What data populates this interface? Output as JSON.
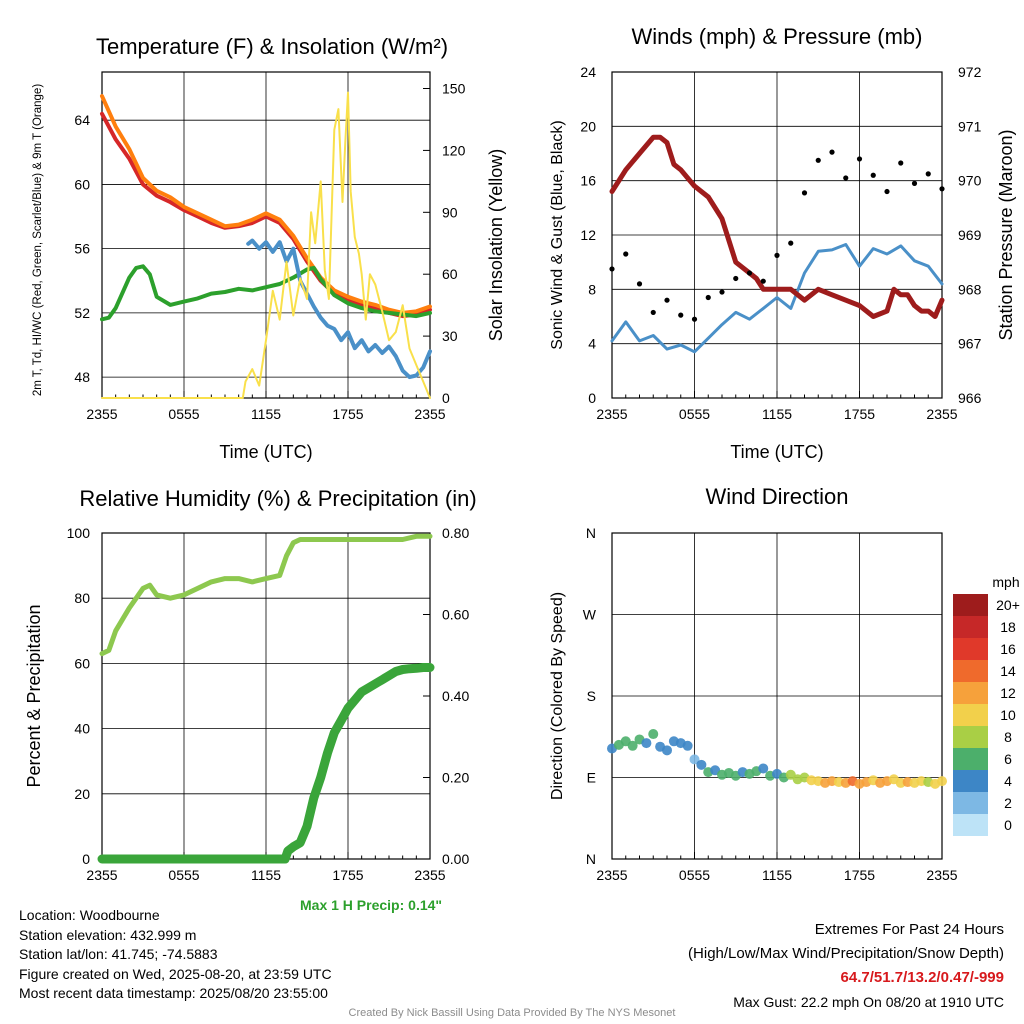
{
  "chart_data": [
    {
      "type": "line",
      "title": "Temperature (F) & Insolation (W/m²)",
      "xlabel": "Time (UTC)",
      "ylabel": "2m T, Td, HI/WC (Red, Green, Scarlet/Blue) & 9m T (Orange)",
      "y2label": "Solar Insolation (Yellow)",
      "x_ticks": [
        "2355",
        "0555",
        "1155",
        "1755",
        "2355"
      ],
      "y_ticks": [
        48,
        52,
        56,
        60,
        64
      ],
      "y2_ticks": [
        0,
        30,
        60,
        90,
        120,
        150
      ],
      "ylim": [
        46.7,
        67.0
      ],
      "y2lim": [
        0,
        158
      ],
      "x_hours": [
        0,
        24
      ],
      "series": [
        {
          "name": "2m T",
          "color": "#d62728",
          "axis": "left",
          "x": [
            0,
            1,
            2,
            3,
            4,
            5,
            6,
            7,
            8,
            9,
            10,
            11,
            12,
            13,
            14,
            15,
            16,
            17,
            18,
            19,
            20,
            21,
            22,
            23,
            24
          ],
          "values": [
            64.4,
            62.8,
            61.6,
            60.0,
            59.3,
            58.9,
            58.4,
            58.0,
            57.6,
            57.3,
            57.4,
            57.6,
            58.0,
            57.6,
            56.6,
            55.2,
            54.0,
            53.2,
            52.8,
            52.5,
            52.3,
            52.0,
            51.8,
            51.9,
            52.2
          ]
        },
        {
          "name": "9m T",
          "color": "#ff7f0e",
          "axis": "left",
          "x": [
            0,
            1,
            2,
            3,
            4,
            5,
            6,
            7,
            8,
            9,
            10,
            11,
            12,
            13,
            14,
            15,
            16,
            17,
            18,
            19,
            20,
            21,
            22,
            23,
            24
          ],
          "values": [
            65.5,
            63.6,
            62.2,
            60.4,
            59.6,
            59.2,
            58.6,
            58.2,
            57.8,
            57.4,
            57.5,
            57.8,
            58.2,
            57.8,
            56.8,
            55.4,
            54.2,
            53.4,
            53.0,
            52.7,
            52.5,
            52.2,
            52.0,
            52.1,
            52.4
          ]
        },
        {
          "name": "Td",
          "color": "#2ca02c",
          "axis": "left",
          "x": [
            0,
            0.5,
            1,
            2,
            2.5,
            3,
            3.5,
            4,
            5,
            6,
            7,
            8,
            9,
            10,
            11,
            12,
            13,
            14,
            15,
            15.5,
            16,
            17,
            18,
            19,
            20,
            21,
            22,
            23,
            24
          ],
          "values": [
            51.6,
            51.7,
            52.3,
            54.2,
            54.8,
            54.9,
            54.4,
            53.0,
            52.5,
            52.7,
            52.9,
            53.2,
            53.3,
            53.5,
            53.4,
            53.6,
            53.8,
            54.2,
            54.7,
            54.8,
            54.1,
            53.1,
            52.6,
            52.3,
            52.1,
            52.0,
            51.9,
            51.8,
            52.0
          ]
        },
        {
          "name": "HI/WC",
          "color": "#4a90c8",
          "axis": "left",
          "x": [
            10.7,
            11,
            11.5,
            12,
            12.5,
            13,
            13.5,
            14,
            14.5,
            15,
            15.5,
            16,
            16.5,
            17,
            17.5,
            18,
            18.5,
            19,
            19.5,
            20,
            20.5,
            21,
            21.5,
            22,
            22.5,
            23,
            23.5,
            24
          ],
          "values": [
            56.3,
            56.5,
            56.0,
            56.4,
            55.8,
            56.4,
            55.2,
            56.0,
            54.0,
            53.2,
            52.4,
            51.7,
            51.2,
            51.0,
            50.3,
            50.8,
            49.8,
            50.3,
            49.6,
            50.0,
            49.5,
            49.9,
            49.3,
            48.4,
            48.0,
            48.1,
            48.6,
            49.6
          ]
        },
        {
          "name": "Solar Insolation",
          "color": "#f9e04b",
          "axis": "right",
          "x": [
            0,
            10.3,
            10.5,
            11,
            11.5,
            12,
            12.5,
            13,
            13.5,
            14,
            14.5,
            15,
            15.3,
            15.6,
            16,
            16.3,
            16.6,
            17,
            17.3,
            17.6,
            17.8,
            18,
            18.2,
            18.5,
            18.8,
            19,
            19.3,
            19.6,
            20,
            20.5,
            21,
            21.5,
            22,
            22.5,
            23,
            23.5,
            24
          ],
          "values": [
            0,
            0,
            8,
            14,
            6,
            28,
            52,
            38,
            66,
            40,
            58,
            48,
            90,
            75,
            105,
            62,
            48,
            130,
            140,
            95,
            124,
            148,
            100,
            78,
            70,
            60,
            38,
            60,
            55,
            42,
            28,
            32,
            45,
            24,
            16,
            8,
            0
          ]
        }
      ]
    },
    {
      "type": "scatter",
      "title": "Winds (mph) & Pressure (mb)",
      "xlabel": "Time (UTC)",
      "ylabel": "Sonic Wind & Gust (Blue, Black)",
      "y2label": "Station Pressure (Maroon)",
      "x_ticks": [
        "2355",
        "0555",
        "1155",
        "1755",
        "2355"
      ],
      "y_ticks": [
        0,
        4,
        8,
        12,
        16,
        20,
        24
      ],
      "y2_ticks": [
        966,
        967,
        968,
        969,
        970,
        971,
        972
      ],
      "ylim": [
        0,
        24
      ],
      "y2lim": [
        966,
        972
      ],
      "series": [
        {
          "name": "Sonic Wind",
          "color": "#4a90c8",
          "axis": "left",
          "x": [
            0,
            1,
            2,
            3,
            4,
            5,
            6,
            7,
            8,
            9,
            10,
            11,
            12,
            13,
            14,
            15,
            16,
            17,
            18,
            19,
            20,
            21,
            22,
            23,
            24
          ],
          "values": [
            4.2,
            5.6,
            4.2,
            4.6,
            3.6,
            3.9,
            3.4,
            4.4,
            5.4,
            6.3,
            5.8,
            6.6,
            7.4,
            6.6,
            9.2,
            10.8,
            10.9,
            11.3,
            9.7,
            11.0,
            10.6,
            11.2,
            10.1,
            9.7,
            8.4
          ]
        },
        {
          "name": "Gust",
          "color": "#000000",
          "axis": "left",
          "x": [
            0,
            1,
            2,
            3,
            4,
            5,
            6,
            7,
            8,
            9,
            10,
            11,
            12,
            13,
            14,
            15,
            16,
            17,
            18,
            19,
            20,
            21,
            22,
            23,
            24
          ],
          "values": [
            9.5,
            10.6,
            8.4,
            6.3,
            7.2,
            6.1,
            5.8,
            7.4,
            7.8,
            8.8,
            9.2,
            8.6,
            10.5,
            11.4,
            15.1,
            17.5,
            18.1,
            16.2,
            17.6,
            16.4,
            15.2,
            17.3,
            15.8,
            16.5,
            15.4
          ]
        },
        {
          "name": "Station Pressure",
          "color": "#9e1c1c",
          "axis": "right",
          "x": [
            0,
            0.5,
            1,
            2,
            3,
            3.5,
            4,
            4.5,
            5,
            6,
            7,
            8,
            9,
            9.5,
            10,
            10.5,
            11,
            12,
            13,
            14,
            15,
            16,
            17,
            18,
            19,
            20,
            20.5,
            21,
            21.5,
            22,
            22.5,
            23,
            23.5,
            24
          ],
          "values": [
            969.8,
            970.0,
            970.2,
            970.5,
            970.8,
            970.8,
            970.7,
            970.3,
            970.2,
            969.9,
            969.7,
            969.3,
            968.5,
            968.4,
            968.3,
            968.2,
            968.0,
            968.0,
            968.0,
            967.8,
            968.0,
            967.9,
            967.8,
            967.7,
            967.5,
            967.6,
            968.0,
            967.9,
            967.9,
            967.7,
            967.6,
            967.6,
            967.5,
            967.8
          ]
        }
      ]
    },
    {
      "type": "line",
      "title": "Relative Humidity (%) & Precipitation (in)",
      "ylabel": "Percent & Precipitation",
      "x_ticks": [
        "2355",
        "0555",
        "1155",
        "1755",
        "2355"
      ],
      "y_ticks": [
        0,
        20,
        40,
        60,
        80,
        100
      ],
      "y2_ticks": [
        "0.00",
        "0.20",
        "0.40",
        "0.60",
        "0.80"
      ],
      "ylim": [
        0,
        100
      ],
      "y2lim": [
        0,
        0.8
      ],
      "annotation": "Max 1 H Precip: 0.14\"",
      "series": [
        {
          "name": "Relative Humidity",
          "color": "#8dc84f",
          "axis": "left",
          "x": [
            0,
            0.5,
            1,
            2,
            3,
            3.5,
            4,
            5,
            6,
            7,
            8,
            9,
            10,
            11,
            12,
            13,
            13.5,
            14,
            14.5,
            15,
            16,
            17,
            18,
            19,
            20,
            21,
            22,
            23,
            24
          ],
          "values": [
            63,
            64,
            70,
            77,
            83,
            84,
            81,
            80,
            81,
            83,
            85,
            86,
            86,
            85,
            86,
            87,
            93,
            97,
            98,
            98,
            98,
            98,
            98,
            98,
            98,
            98,
            98,
            99,
            99
          ]
        },
        {
          "name": "Precipitation",
          "color": "#3aa53a",
          "axis": "right",
          "x": [
            0,
            13.4,
            13.6,
            14,
            14.5,
            15,
            15.5,
            16,
            16.5,
            17,
            17.5,
            18,
            18.5,
            19,
            19.5,
            20,
            20.5,
            21,
            21.5,
            22,
            22.5,
            23,
            23.5,
            24
          ],
          "values": [
            0,
            0,
            0.02,
            0.03,
            0.04,
            0.08,
            0.15,
            0.2,
            0.26,
            0.31,
            0.34,
            0.37,
            0.39,
            0.41,
            0.42,
            0.43,
            0.44,
            0.45,
            0.46,
            0.465,
            0.467,
            0.468,
            0.47,
            0.47
          ]
        }
      ]
    },
    {
      "type": "scatter",
      "title": "Wind Direction",
      "ylabel": "Direction (Colored By Speed)",
      "x_ticks": [
        "2355",
        "0555",
        "1155",
        "1755",
        "2355"
      ],
      "y_ticks": [
        "N",
        "E",
        "S",
        "W",
        "N"
      ],
      "ylim": [
        0,
        360
      ],
      "colorbar": {
        "title": "mph",
        "labels": [
          "20+",
          "18",
          "16",
          "14",
          "12",
          "10",
          "8",
          "6",
          "4",
          "2",
          "0"
        ],
        "colors": [
          "#9e1c1c",
          "#c62828",
          "#e0392a",
          "#ef6a2c",
          "#f6a13b",
          "#f2d04b",
          "#a9cf45",
          "#4caf6b",
          "#3d86c6",
          "#7db8e4",
          "#bde3f7"
        ]
      },
      "series": [
        {
          "name": "Direction",
          "x": [
            0,
            0.5,
            1,
            1.5,
            2,
            2.5,
            3,
            3.5,
            4,
            4.5,
            5,
            5.5,
            6,
            6.5,
            7,
            7.5,
            8,
            8.5,
            9,
            9.5,
            10,
            10.5,
            11,
            11.5,
            12,
            12.5,
            13,
            13.5,
            14,
            14.5,
            15,
            15.5,
            16,
            16.5,
            17,
            17.5,
            18,
            18.5,
            19,
            19.5,
            20,
            20.5,
            21,
            21.5,
            22,
            22.5,
            23,
            23.5,
            24
          ],
          "values": [
            122,
            126,
            130,
            125,
            132,
            128,
            138,
            124,
            120,
            130,
            128,
            125,
            110,
            104,
            96,
            98,
            93,
            95,
            92,
            96,
            94,
            97,
            100,
            92,
            94,
            90,
            93,
            88,
            90,
            87,
            86,
            84,
            86,
            85,
            84,
            86,
            83,
            85,
            87,
            84,
            86,
            88,
            84,
            85,
            84,
            86,
            85,
            83,
            86
          ],
          "speeds": [
            3,
            5,
            6,
            5,
            6,
            4,
            5,
            4,
            3,
            4,
            4,
            3,
            2,
            3,
            5,
            4,
            5,
            6,
            5,
            4,
            5,
            6,
            4,
            5,
            4,
            6,
            7,
            8,
            7,
            9,
            10,
            11,
            12,
            10,
            12,
            13,
            11,
            12,
            10,
            11,
            12,
            10,
            9,
            11,
            10,
            9,
            8,
            9,
            10
          ]
        }
      ]
    }
  ],
  "info": {
    "location": "Location: Woodbourne",
    "elevation": "Station elevation: 432.999 m",
    "latlon": "Station lat/lon: 41.745; -74.5883",
    "created": "Figure created on Wed, 2025-08-20, at 23:59 UTC",
    "recent": "Most recent data timestamp: 2025/08/20 23:55:00"
  },
  "extremes": {
    "title": "Extremes For Past 24 Hours",
    "subtitle": "(High/Low/Max Wind/Precipitation/Snow Depth)",
    "values": "64.7/51.7/13.2/0.47/-999",
    "gust": "Max Gust: 22.2 mph On 08/20 at 1910 UTC"
  },
  "credit": "Created By Nick Bassill Using Data Provided By The NYS Mesonet"
}
